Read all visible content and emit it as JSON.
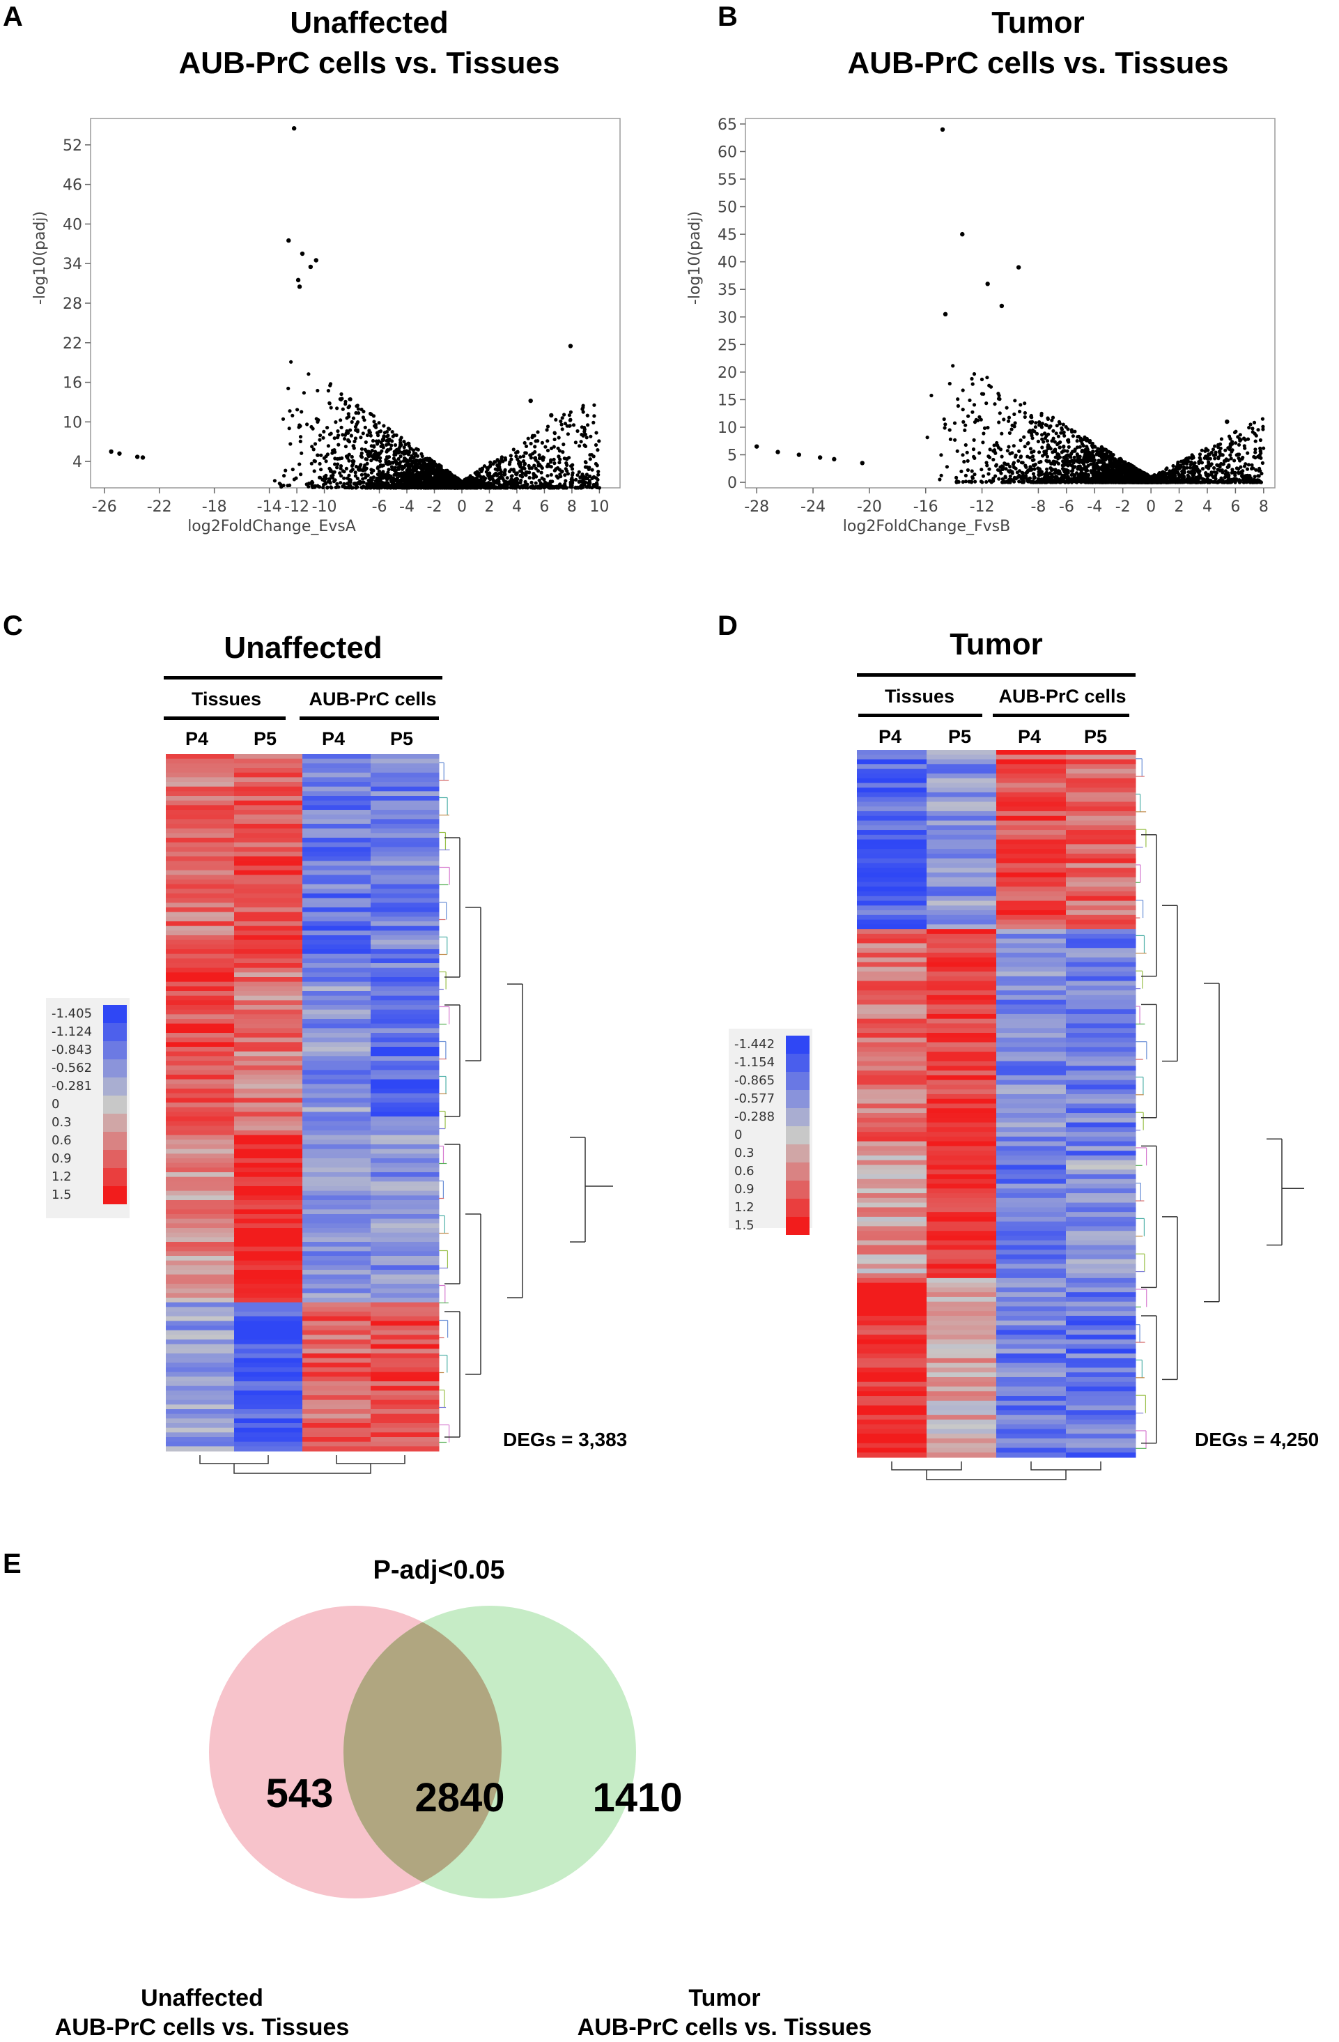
{
  "panels": {
    "A": {
      "letter": "A",
      "title_line1": "Unaffected",
      "title_line2": "AUB-PrC cells vs. Tissues"
    },
    "B": {
      "letter": "B",
      "title_line1": "Tumor",
      "title_line2": "AUB-PrC cells vs. Tissues"
    },
    "C": {
      "letter": "C",
      "title": "Unaffected",
      "group_left": "Tissues",
      "group_right": "AUB-PrC cells",
      "cols": [
        "P4",
        "P5",
        "P4",
        "P5"
      ],
      "legend": [
        "-1.405",
        "-1.124",
        "-0.843",
        "-0.562",
        "-0.281",
        "0",
        "0.3",
        "0.6",
        "0.9",
        "1.2",
        "1.5"
      ],
      "degs": "DEGs = 3,383"
    },
    "D": {
      "letter": "D",
      "title": "Tumor",
      "group_left": "Tissues",
      "group_right": "AUB-PrC cells",
      "cols": [
        "P4",
        "P5",
        "P4",
        "P5"
      ],
      "legend": [
        "-1.442",
        "-1.154",
        "-0.865",
        "-0.577",
        "-0.288",
        "0",
        "0.3",
        "0.6",
        "0.9",
        "1.2",
        "1.5"
      ],
      "degs": "DEGs = 4,250"
    },
    "E": {
      "letter": "E",
      "title": "P-adj<0.05",
      "left_only": "543",
      "overlap": "2840",
      "right_only": "1410",
      "left_caption_line1": "Unaffected",
      "left_caption_line2": "AUB-PrC cells vs. Tissues",
      "right_caption_line1": "Tumor",
      "right_caption_line2": "AUB-PrC cells vs. Tissues",
      "left_color": "#f7c3cb",
      "right_color": "#c6ecc6",
      "overlap_color": "#b0a680"
    }
  },
  "heatmap_colors": {
    "blue": "#2f47f5",
    "white": "#c8c8c8",
    "red": "#f21c1c"
  },
  "chart_data": [
    {
      "type": "scatter",
      "title": "Unaffected AUB-PrC cells vs. Tissues",
      "xlabel": "log2FoldChange_EvsA",
      "ylabel": "-log10(padj)",
      "xlim": [
        -27,
        11.5
      ],
      "ylim": [
        0,
        56
      ],
      "xticks": [
        "-26",
        "-22",
        "-18",
        "-14",
        "-12",
        "-10",
        "-6",
        "-4",
        "-2",
        "0",
        "2",
        "4",
        "6",
        "8",
        "10"
      ],
      "yticks": [
        "4",
        "10",
        "16",
        "22",
        "28",
        "34",
        "40",
        "46",
        "52"
      ],
      "highlight_points": [
        {
          "x": -12.2,
          "y": 54.5
        },
        {
          "x": -12.6,
          "y": 37.5
        },
        {
          "x": -11.6,
          "y": 35.5
        },
        {
          "x": -11.0,
          "y": 33.5
        },
        {
          "x": -10.6,
          "y": 34.5
        },
        {
          "x": -11.9,
          "y": 31.5
        },
        {
          "x": -11.8,
          "y": 30.5
        },
        {
          "x": 7.9,
          "y": 21.5
        },
        {
          "x": -25.5,
          "y": 5.5
        },
        {
          "x": -24.9,
          "y": 5.2
        },
        {
          "x": -23.6,
          "y": 4.7
        },
        {
          "x": -23.2,
          "y": 4.6
        },
        {
          "x": 6.5,
          "y": 11.0
        },
        {
          "x": 5.0,
          "y": 13.2
        }
      ],
      "cloud": "volcano: dense points from log2FC -14 to 10, -log10(padj) up to ~28"
    },
    {
      "type": "scatter",
      "title": "Tumor AUB-PrC cells vs. Tissues",
      "xlabel": "log2FoldChange_FvsB",
      "ylabel": "-log10(padj)",
      "xlim": [
        -28.8,
        8.8
      ],
      "ylim": [
        -1,
        66
      ],
      "xticks": [
        "-28",
        "-24",
        "-20",
        "-16",
        "-12",
        "-8",
        "-6",
        "-4",
        "-2",
        "0",
        "2",
        "4",
        "6",
        "8"
      ],
      "yticks": [
        "0",
        "5",
        "10",
        "15",
        "20",
        "25",
        "30",
        "35",
        "40",
        "45",
        "50",
        "55",
        "60",
        "65"
      ],
      "highlight_points": [
        {
          "x": -14.8,
          "y": 64
        },
        {
          "x": -13.4,
          "y": 45
        },
        {
          "x": -9.4,
          "y": 39
        },
        {
          "x": -11.6,
          "y": 36
        },
        {
          "x": -10.6,
          "y": 32
        },
        {
          "x": -14.6,
          "y": 30.5
        },
        {
          "x": -28.0,
          "y": 6.5
        },
        {
          "x": -26.5,
          "y": 5.5
        },
        {
          "x": -25.0,
          "y": 5.0
        },
        {
          "x": -23.5,
          "y": 4.5
        },
        {
          "x": -22.5,
          "y": 4.2
        },
        {
          "x": -20.5,
          "y": 3.5
        },
        {
          "x": 5.4,
          "y": 11.0
        }
      ],
      "cloud": "volcano: dense points from log2FC -16 to 8, -log10(padj) up to ~30"
    },
    {
      "type": "heatmap",
      "title": "Unaffected",
      "columns": [
        "Tissues P4",
        "Tissues P5",
        "AUB-PrC cells P4",
        "AUB-PrC cells P5"
      ],
      "row_blocks_top_to_bottom": [
        {
          "tissues_P4": 0.8,
          "tissues_P5": 1.0,
          "cells_P4": -0.9,
          "cells_P5": -0.8,
          "rows_frac": 0.31
        },
        {
          "tissues_P4": 1.1,
          "tissues_P5": 0.7,
          "cells_P4": -0.6,
          "cells_P5": -1.0,
          "rows_frac": 0.23
        },
        {
          "tissues_P4": 0.5,
          "tissues_P5": 1.5,
          "cells_P4": -0.7,
          "cells_P5": -0.6,
          "rows_frac": 0.24
        },
        {
          "tissues_P4": -0.5,
          "tissues_P5": -1.2,
          "cells_P4": 0.9,
          "cells_P5": 1.1,
          "rows_frac": 0.22
        }
      ],
      "degs": 3383
    },
    {
      "type": "heatmap",
      "title": "Tumor",
      "columns": [
        "Tissues P4",
        "Tissues P5",
        "AUB-PrC cells P4",
        "AUB-PrC cells P5"
      ],
      "row_blocks_top_to_bottom": [
        {
          "tissues_P4": -1.1,
          "tissues_P5": -0.6,
          "cells_P4": 1.1,
          "cells_P5": 0.9,
          "rows_frac": 0.25
        },
        {
          "tissues_P4": 0.8,
          "tissues_P5": 1.2,
          "cells_P4": -0.7,
          "cells_P5": -0.8,
          "rows_frac": 0.32
        },
        {
          "tissues_P4": 0.4,
          "tissues_P5": 1.4,
          "cells_P4": -0.9,
          "cells_P5": -0.5,
          "rows_frac": 0.17
        },
        {
          "tissues_P4": 1.4,
          "tissues_P5": 0.3,
          "cells_P4": -0.8,
          "cells_P5": -0.9,
          "rows_frac": 0.26
        }
      ],
      "degs": 4250
    }
  ]
}
